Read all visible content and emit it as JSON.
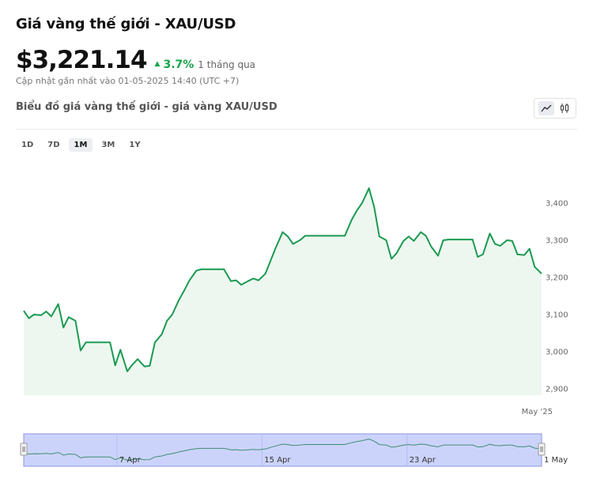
{
  "header": {
    "title": "Giá vàng thế giới - XAU/USD",
    "price": "$3,221.14",
    "change_icon": "triangle-up-icon",
    "change": "3.7%",
    "period": "1 tháng qua",
    "updated": "Cập nhật gần nhất vào 01-05-2025 14:40 (UTC +7)",
    "subtitle": "Biểu đồ giá vàng thế giới - giá vàng XAU/USD"
  },
  "toolbar": {
    "icons": [
      "line-chart-icon",
      "candlestick-icon"
    ],
    "active": "line-chart-icon"
  },
  "ranges": {
    "items": [
      "1D",
      "7D",
      "1M",
      "3M",
      "1Y"
    ],
    "active": "1M"
  },
  "colors": {
    "line": "#1a9a52",
    "area": "#edf7ef",
    "up": "#16a34a",
    "navigator_fill": "#ccd3fb",
    "navigator_border": "#8a97e0"
  },
  "chart_data": {
    "type": "area",
    "title": "",
    "xlabel": "",
    "ylabel": "",
    "ylim": [
      2900,
      3450
    ],
    "yticks": [
      2900,
      3000,
      3100,
      3200,
      3300,
      3400
    ],
    "ytick_labels": [
      "2,900",
      "3,000",
      "3,100",
      "3,200",
      "3,300",
      "3,400"
    ],
    "xlim": [
      0,
      30
    ],
    "x_tick": {
      "x": 30,
      "label": "May '25"
    },
    "grid": false,
    "series": [
      {
        "x": [
          0,
          0.3,
          0.6,
          1,
          1.3,
          1.6,
          2,
          2.3,
          2.6,
          3,
          3.3,
          3.6,
          4,
          4.3,
          4.6,
          5,
          5.3,
          5.6,
          6,
          6.3,
          6.6,
          7,
          7.3,
          7.6,
          8,
          8.3,
          8.6,
          9,
          9.3,
          9.6,
          10,
          10.3,
          10.6,
          11,
          11.3,
          11.6,
          12,
          12.3,
          12.6,
          13,
          13.3,
          13.6,
          14,
          14.3,
          14.6,
          15,
          15.3,
          15.6,
          16,
          16.3,
          16.6,
          17,
          17.3,
          17.6,
          18,
          18.3,
          18.6,
          19,
          19.3,
          19.6,
          20,
          20.3,
          20.6,
          21,
          21.3,
          21.6,
          22,
          22.3,
          22.6,
          23,
          23.3,
          23.6,
          24,
          24.3,
          24.6,
          25,
          25.3,
          25.6,
          26,
          26.3,
          26.6,
          27,
          27.3,
          27.6,
          28,
          28.3,
          28.6,
          29,
          29.3,
          29.6,
          30
        ],
        "values": [
          3110,
          3090,
          3100,
          3098,
          3108,
          3095,
          3128,
          3065,
          3093,
          3083,
          3003,
          3025,
          3025,
          3025,
          3025,
          3025,
          2963,
          3005,
          2947,
          2965,
          2980,
          2960,
          2962,
          3025,
          3047,
          3083,
          3100,
          3140,
          3165,
          3192,
          3218,
          3222,
          3222,
          3222,
          3222,
          3222,
          3190,
          3192,
          3180,
          3190,
          3197,
          3192,
          3210,
          3245,
          3280,
          3322,
          3310,
          3290,
          3300,
          3312,
          3312,
          3312,
          3312,
          3312,
          3312,
          3312,
          3312,
          3355,
          3380,
          3400,
          3440,
          3390,
          3310,
          3300,
          3250,
          3265,
          3298,
          3310,
          3298,
          3322,
          3312,
          3283,
          3258,
          3300,
          3302,
          3302,
          3302,
          3302,
          3302,
          3255,
          3262,
          3318,
          3290,
          3285,
          3300,
          3298,
          3262,
          3260,
          3277,
          3228,
          3210
        ]
      }
    ],
    "navigator": {
      "labels": [
        {
          "x": 5.4,
          "label": "7 Apr"
        },
        {
          "x": 13.8,
          "label": "15 Apr"
        },
        {
          "x": 22.2,
          "label": "23 Apr"
        },
        {
          "x": 30,
          "label": "1 May"
        }
      ]
    }
  }
}
